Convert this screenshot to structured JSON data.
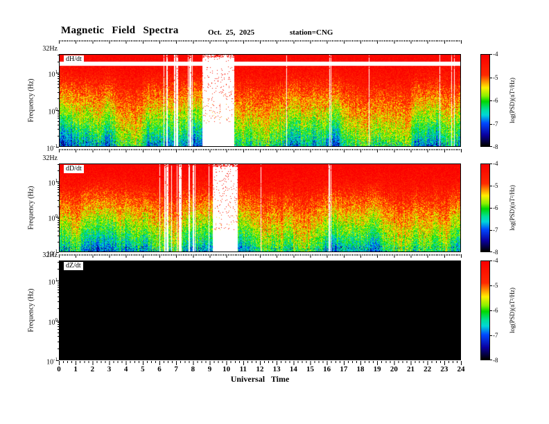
{
  "chart_data": {
    "type": "heatmap",
    "title": "Magnetic Field Spectra",
    "date": "Oct. 25, 2025",
    "station": "station=CNG",
    "xlabel": "Universal Time",
    "ylabel": "Frequency (Hz)",
    "x_range": [
      0,
      24
    ],
    "x_tick_labels": [
      "0",
      "1",
      "2",
      "3",
      "4",
      "5",
      "6",
      "7",
      "8",
      "9",
      "10",
      "11",
      "12",
      "13",
      "14",
      "15",
      "16",
      "17",
      "18",
      "19",
      "20",
      "21",
      "22",
      "23",
      "24"
    ],
    "y_scale": "log",
    "y_range_hz": [
      0.1,
      32
    ],
    "y_top_label": "32Hz",
    "y_tick_labels": [
      "10^1",
      "10^0",
      "10^-1"
    ],
    "y_tick_values": [
      10,
      1,
      0.1
    ],
    "value_range": [
      -8,
      -4
    ],
    "colorbar": {
      "label": "log(PSD)(nT²/Hz)",
      "tick_labels": [
        "-4",
        "-5",
        "-6",
        "-7",
        "-8"
      ],
      "tick_values": [
        -4,
        -5,
        -6,
        -7,
        -8
      ],
      "stops": [
        {
          "t": 1.0,
          "color": "#fb0000"
        },
        {
          "t": 0.78,
          "color": "#ff2a00"
        },
        {
          "t": 0.7,
          "color": "#ff9c00"
        },
        {
          "t": 0.64,
          "color": "#fff000"
        },
        {
          "t": 0.55,
          "color": "#8cf000"
        },
        {
          "t": 0.49,
          "color": "#00d800"
        },
        {
          "t": 0.4,
          "color": "#00e09a"
        },
        {
          "t": 0.34,
          "color": "#00d8d8"
        },
        {
          "t": 0.25,
          "color": "#0048ff"
        },
        {
          "t": 0.12,
          "color": "#0a00a0"
        },
        {
          "t": 0.0,
          "color": "#000000"
        }
      ]
    },
    "panels": [
      {
        "id": "H",
        "label": "dH/dt",
        "has_data": true,
        "seed": 7,
        "data_gaps_ut": [
          [
            8.55,
            10.45
          ]
        ],
        "partial_gaps_ut": [
          [
            6.2,
            6.45
          ],
          [
            6.85,
            7.1
          ],
          [
            7.6,
            8.05
          ],
          [
            16.05,
            16.3
          ]
        ],
        "filter_notch": true
      },
      {
        "id": "D",
        "label": "dD/dt",
        "has_data": true,
        "seed": 13,
        "data_gaps_ut": [
          [
            9.15,
            10.65
          ]
        ],
        "partial_gaps_ut": [
          [
            6.2,
            6.5
          ],
          [
            7.0,
            7.3
          ],
          [
            7.7,
            8.1
          ],
          [
            16.05,
            16.25
          ]
        ],
        "filter_notch": false
      },
      {
        "id": "Z",
        "label": "dZ/dt",
        "has_data": false,
        "seed": 1,
        "data_gaps_ut": [],
        "partial_gaps_ut": [],
        "filter_notch": false
      }
    ],
    "psd_model": {
      "psd_at_top_hz": -4.0,
      "psd_at_bottom_hz": -6.9,
      "noise_amplitude": 0.55,
      "data_notes": "Power spectral density is highest (red, ~-4) near 10-32 Hz and falls to green/blue (~-6.5 to -7.5) near 0.1 Hz all day; white data gap ~08:40-10:30 UT with sparse speckles; intermittent dropouts ~06-08 UT and ~16:10 UT; dZ/dt channel contains no data (solid black)."
    }
  }
}
